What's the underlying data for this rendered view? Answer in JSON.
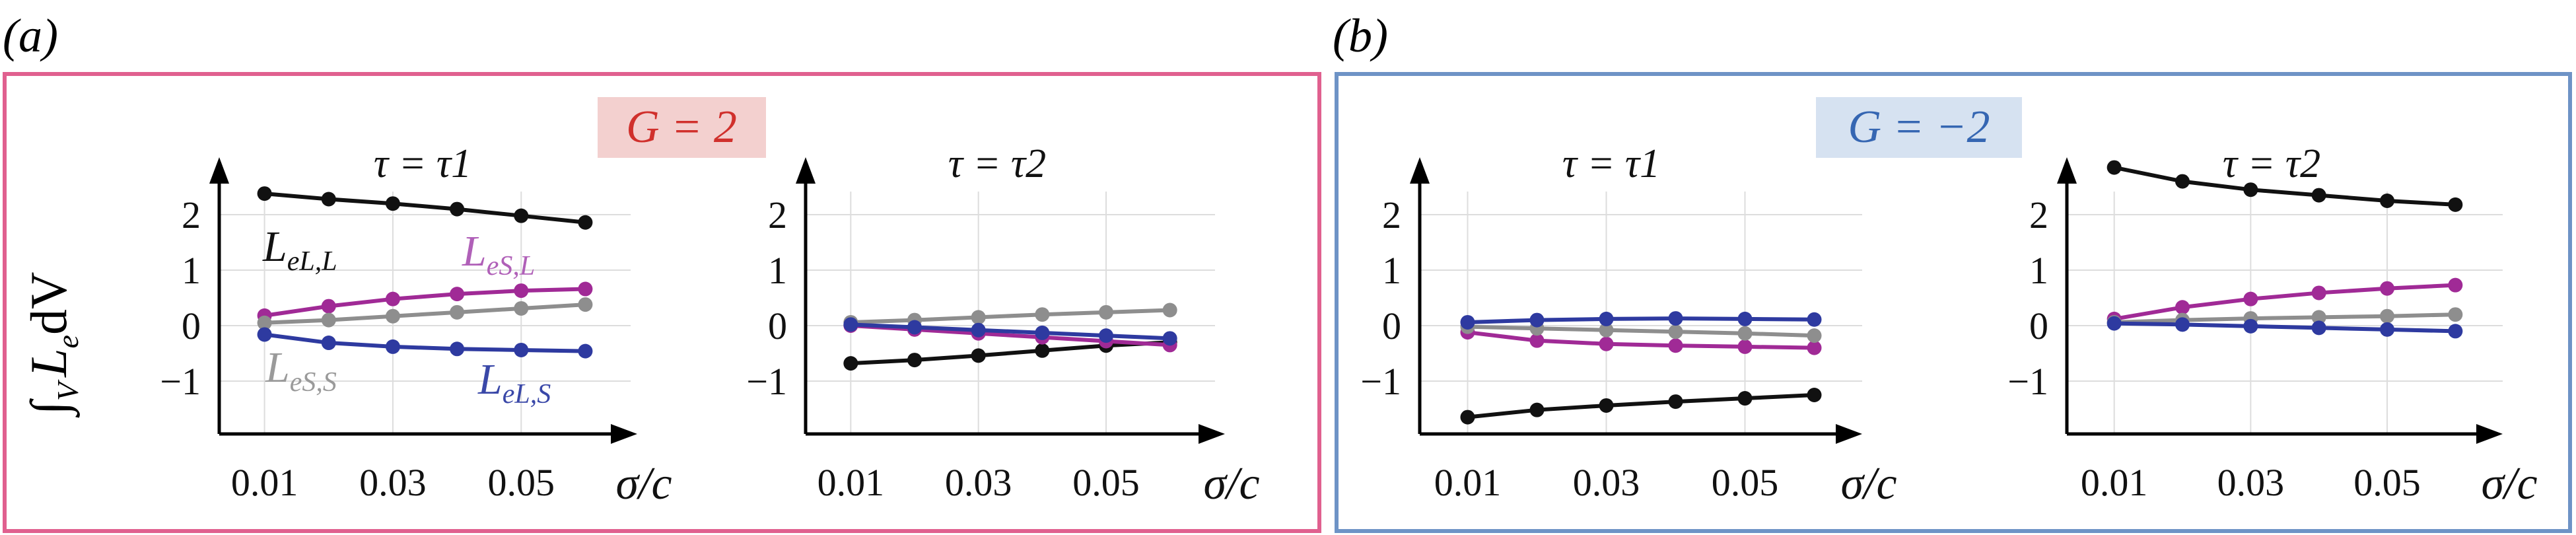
{
  "panels": [
    {
      "id": "a",
      "label": "(a)",
      "frame_color": "#e0608f",
      "badge_color": "#f3d0cf",
      "badge_text_color": "#d0302c",
      "badge": "G = 2",
      "ylabel": "∫V Le dV",
      "curve_labels": [
        {
          "text": "LeL,L",
          "base": "L",
          "sub": "eL,L",
          "color": "#111111"
        },
        {
          "text": "LeS,L",
          "base": "L",
          "sub": "eS,L",
          "color": "#b060b8"
        },
        {
          "text": "LeS,S",
          "base": "L",
          "sub": "eS,S",
          "color": "#9a9a9a"
        },
        {
          "text": "LeL,S",
          "base": "L",
          "sub": "eL,S",
          "color": "#3a48a8"
        }
      ]
    },
    {
      "id": "b",
      "label": "(b)",
      "frame_color": "#6e93c6",
      "badge_color": "#d6e2f1",
      "badge_text_color": "#3566b2",
      "badge": "G = −2",
      "ylabel": "",
      "curve_labels": []
    }
  ],
  "chart_data": [
    {
      "type": "line",
      "panel": "a",
      "title": "τ = τ1",
      "xlabel": "σ/c",
      "ylabel": "∫V Le dV",
      "xticks": [
        "0.01",
        "0.03",
        "0.05"
      ],
      "yticks": [
        "2",
        "1",
        "0",
        "−1"
      ],
      "xlim": [
        0.005,
        0.065
      ],
      "ylim": [
        -1.9,
        3.3
      ],
      "grid": true,
      "x": [
        0.01,
        0.02,
        0.03,
        0.04,
        0.05,
        0.06
      ],
      "series": [
        {
          "key": "LeL,L",
          "color": "#111111",
          "values": [
            2.38,
            2.28,
            2.2,
            2.1,
            1.98,
            1.86
          ]
        },
        {
          "key": "LeS,L",
          "color": "#a02a96",
          "values": [
            0.18,
            0.35,
            0.48,
            0.57,
            0.63,
            0.66
          ]
        },
        {
          "key": "LeS,S",
          "color": "#8e8e8e",
          "values": [
            0.05,
            0.1,
            0.17,
            0.24,
            0.31,
            0.38
          ]
        },
        {
          "key": "LeL,S",
          "color": "#2e3aa0",
          "values": [
            -0.16,
            -0.31,
            -0.38,
            -0.42,
            -0.44,
            -0.46
          ]
        }
      ]
    },
    {
      "type": "line",
      "panel": "a",
      "title": "τ = τ2",
      "xlabel": "σ/c",
      "xticks": [
        "0.01",
        "0.03",
        "0.05"
      ],
      "yticks": [
        "2",
        "1",
        "0",
        "−1"
      ],
      "xlim": [
        0.005,
        0.065
      ],
      "ylim": [
        -1.9,
        3.3
      ],
      "grid": true,
      "x": [
        0.01,
        0.02,
        0.03,
        0.04,
        0.05,
        0.06
      ],
      "series": [
        {
          "key": "LeL,L",
          "color": "#111111",
          "values": [
            -0.68,
            -0.62,
            -0.54,
            -0.45,
            -0.36,
            -0.3
          ]
        },
        {
          "key": "LeS,L",
          "color": "#a02a96",
          "values": [
            0.0,
            -0.07,
            -0.14,
            -0.21,
            -0.28,
            -0.35
          ]
        },
        {
          "key": "LeS,S",
          "color": "#8e8e8e",
          "values": [
            0.06,
            0.1,
            0.15,
            0.2,
            0.24,
            0.28
          ]
        },
        {
          "key": "LeL,S",
          "color": "#2e3aa0",
          "values": [
            0.02,
            -0.03,
            -0.08,
            -0.13,
            -0.18,
            -0.23
          ]
        }
      ]
    },
    {
      "type": "line",
      "panel": "b",
      "title": "τ = τ1",
      "xlabel": "σ/c",
      "xticks": [
        "0.01",
        "0.03",
        "0.05"
      ],
      "yticks": [
        "2",
        "1",
        "0",
        "−1"
      ],
      "xlim": [
        0.005,
        0.065
      ],
      "ylim": [
        -1.9,
        3.3
      ],
      "grid": true,
      "x": [
        0.01,
        0.02,
        0.03,
        0.04,
        0.05,
        0.06
      ],
      "series": [
        {
          "key": "LeL,L",
          "color": "#111111",
          "values": [
            -1.65,
            -1.52,
            -1.44,
            -1.37,
            -1.31,
            -1.25
          ]
        },
        {
          "key": "LeS,L",
          "color": "#a02a96",
          "values": [
            -0.12,
            -0.27,
            -0.33,
            -0.36,
            -0.38,
            -0.4
          ]
        },
        {
          "key": "LeS,S",
          "color": "#8e8e8e",
          "values": [
            -0.02,
            -0.05,
            -0.08,
            -0.11,
            -0.14,
            -0.18
          ]
        },
        {
          "key": "LeL,S",
          "color": "#2e3aa0",
          "values": [
            0.06,
            0.1,
            0.12,
            0.13,
            0.12,
            0.11
          ]
        }
      ]
    },
    {
      "type": "line",
      "panel": "b",
      "title": "τ = τ2",
      "xlabel": "σ/c",
      "xticks": [
        "0.01",
        "0.03",
        "0.05"
      ],
      "yticks": [
        "2",
        "1",
        "0",
        "−1"
      ],
      "xlim": [
        0.005,
        0.065
      ],
      "ylim": [
        -1.9,
        3.3
      ],
      "grid": true,
      "x": [
        0.01,
        0.02,
        0.03,
        0.04,
        0.05,
        0.06
      ],
      "series": [
        {
          "key": "LeL,L",
          "color": "#111111",
          "values": [
            2.85,
            2.6,
            2.45,
            2.35,
            2.25,
            2.18
          ]
        },
        {
          "key": "LeS,L",
          "color": "#a02a96",
          "values": [
            0.12,
            0.33,
            0.48,
            0.59,
            0.67,
            0.73
          ]
        },
        {
          "key": "LeS,S",
          "color": "#8e8e8e",
          "values": [
            0.06,
            0.1,
            0.13,
            0.15,
            0.17,
            0.2
          ]
        },
        {
          "key": "LeL,S",
          "color": "#2e3aa0",
          "values": [
            0.04,
            0.02,
            -0.01,
            -0.04,
            -0.07,
            -0.1
          ]
        }
      ]
    }
  ]
}
